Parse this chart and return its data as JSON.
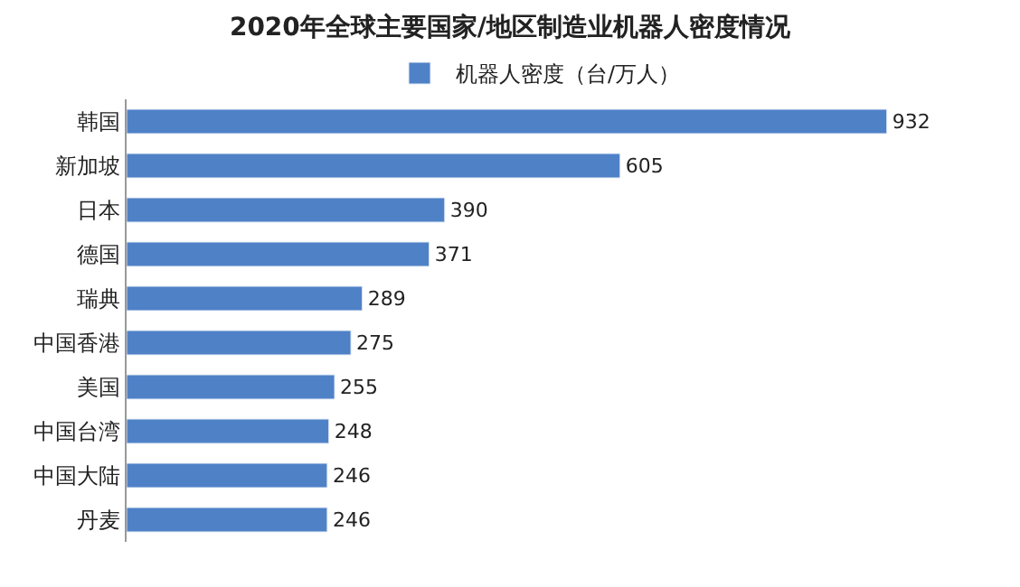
{
  "chart_data": {
    "type": "bar",
    "orientation": "horizontal",
    "title": "2020年全球主要国家/地区制造业机器人密度情况",
    "categories": [
      "韩国",
      "新加坡",
      "日本",
      "德国",
      "瑞典",
      "中国香港",
      "美国",
      "中国台湾",
      "中国大陆",
      "丹麦"
    ],
    "series": [
      {
        "name": "机器人密度（台/万人）",
        "color": "#4f81c7",
        "values": [
          932,
          605,
          390,
          371,
          289,
          275,
          255,
          248,
          246,
          246
        ]
      }
    ],
    "data_labels": true,
    "legend": "top"
  }
}
